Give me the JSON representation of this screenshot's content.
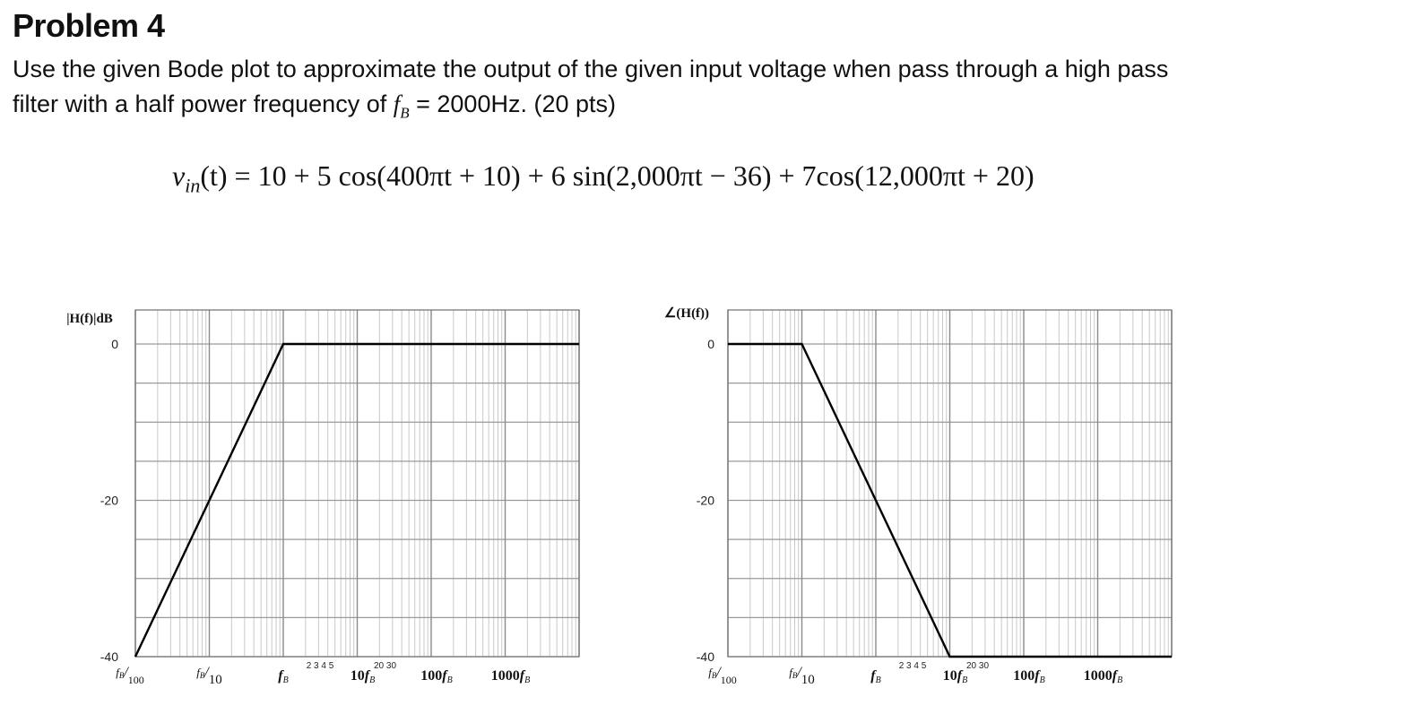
{
  "problem": {
    "title": "Problem 4",
    "statement_line1": "Use the given Bode plot to approximate the output of the given input voltage when pass through a high pass",
    "statement_line2_pre": "filter with a half power frequency of ",
    "fb_symbol": "f",
    "fb_sub": "B",
    "statement_line2_post": " = 2000Hz. (20 pts)"
  },
  "equation": {
    "lhs_var": "v",
    "lhs_sub": "in",
    "lhs_arg": "(t)",
    "rhs": " = 10 + 5 cos(400πt + 10) + 6 sin(2,000πt − 36) + 7cos(12,000πt + 20)"
  },
  "chart_data": [
    {
      "type": "line",
      "ylabel": "|H(f)|dB",
      "yticks": [
        "0",
        "-20",
        "-40"
      ],
      "ylim": [
        -40,
        0
      ],
      "x_scale": "log (decades relative to fB)",
      "xtick_labels": [
        "fB/100",
        "fB/10",
        "fB",
        "10fB",
        "100fB",
        "1000fB"
      ],
      "minor_tick_labels": [
        "2 3 4 5",
        "20 30"
      ],
      "series": [
        {
          "x": [
            "fB/100",
            "fB",
            "10000fB"
          ],
          "y": [
            -40,
            0,
            0
          ]
        }
      ],
      "grid": true
    },
    {
      "type": "line",
      "ylabel": "∠(H(f))",
      "yticks": [
        "0",
        "-20",
        "-40"
      ],
      "ylim": [
        -40,
        0
      ],
      "x_scale": "log (decades relative to fB)",
      "xtick_labels": [
        "fB/100",
        "fB/10",
        "fB",
        "10fB",
        "100fB",
        "1000fB"
      ],
      "minor_tick_labels": [
        "2 3 4 5",
        "20 30"
      ],
      "series": [
        {
          "x": [
            "fB/100",
            "fB/10",
            "10fB",
            "10000fB"
          ],
          "y": [
            0,
            0,
            -40,
            -40
          ]
        }
      ],
      "grid": true
    }
  ]
}
